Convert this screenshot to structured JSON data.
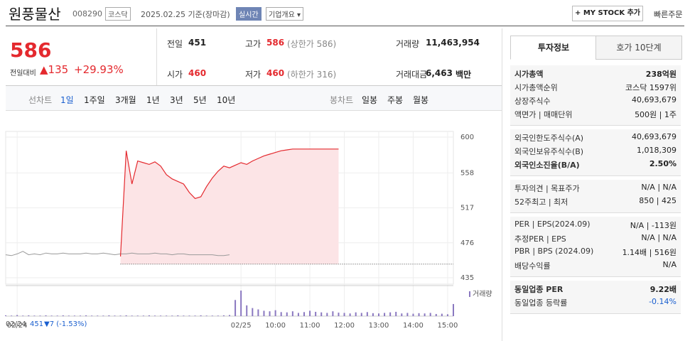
{
  "header": {
    "name": "원풍물산",
    "code": "008290",
    "market": "코스닥",
    "date": "2025.02.25 기준(장마감)",
    "realtime": "실시간",
    "company": "기업개요 ▾",
    "mystock": "+ MY STOCK 추가",
    "quick": "빠른주문"
  },
  "quote": {
    "price": "586",
    "change_label": "전일대비",
    "change": "▲135",
    "rate": "+29.93%",
    "items": [
      {
        "label": "전일",
        "value": "451"
      },
      {
        "label": "고가",
        "value": "586",
        "note": "(상한가 586)"
      },
      {
        "label": "거래량",
        "value": "11,463,954"
      },
      {
        "label": "시가",
        "value": "460"
      },
      {
        "label": "저가",
        "value": "460",
        "note": "(하한가 316)"
      },
      {
        "label": "거래대금",
        "value": "6,463",
        "note": "백만"
      }
    ]
  },
  "tabs": {
    "line_label": "선차트",
    "periods": [
      "1일",
      "1주일",
      "3개월",
      "1년",
      "3년",
      "5년",
      "10년"
    ],
    "candle_label": "봉차트",
    "candles": [
      "일봉",
      "주봉",
      "월봉"
    ]
  },
  "chart": {
    "type": "line",
    "categories": [
      null,
      null,
      "02/24",
      null,
      null,
      null,
      null,
      null,
      null,
      null,
      null,
      null,
      null,
      null,
      null,
      null,
      null,
      null,
      null,
      null,
      null,
      null,
      null,
      null,
      null,
      null,
      null,
      null,
      null,
      null,
      null,
      null,
      null,
      null,
      null,
      null,
      null,
      null,
      null,
      null,
      null,
      "02/25",
      null,
      null,
      null,
      null,
      null,
      "10:00",
      null,
      null,
      null,
      null,
      null,
      "11:00",
      null,
      null,
      null,
      null,
      null,
      "12:00",
      null,
      null,
      null,
      null,
      null,
      "13:00",
      null,
      null,
      null,
      null,
      null,
      "14:00",
      null,
      null,
      null,
      null,
      null,
      "15:00",
      null
    ],
    "series": [
      {
        "color": "#9a9a9a",
        "values": [
          462,
          461,
          463,
          466,
          462,
          463,
          462,
          464,
          463,
          463,
          464,
          463,
          463,
          463,
          464,
          463,
          463,
          464,
          463,
          462,
          463,
          463,
          464,
          463,
          463,
          463,
          464,
          463,
          463,
          462,
          463,
          463,
          462,
          462,
          462,
          462,
          462,
          461,
          461,
          462,
          null,
          null,
          null,
          null,
          null,
          null,
          null,
          null,
          null,
          null,
          null,
          null,
          null,
          null,
          null,
          null,
          null,
          null,
          null,
          null,
          null,
          null,
          null,
          null,
          null,
          null,
          null,
          null,
          null,
          null,
          null,
          null,
          null,
          null,
          null,
          null,
          null,
          null,
          null
        ]
      },
      {
        "color": "#e4292e",
        "fill": "#fce4e6",
        "values": [
          null,
          null,
          null,
          null,
          null,
          null,
          null,
          null,
          null,
          null,
          null,
          null,
          null,
          null,
          null,
          null,
          null,
          null,
          null,
          null,
          460,
          null,
          null,
          null,
          null,
          null,
          null,
          null,
          null,
          null,
          null,
          null,
          null,
          null,
          null,
          null,
          null,
          null,
          null,
          null,
          null,
          null,
          null,
          null,
          null,
          null,
          null,
          null,
          null,
          null,
          null,
          null,
          null,
          null,
          null,
          null,
          null,
          null,
          null,
          null,
          null,
          null,
          null,
          null,
          null,
          null,
          null,
          null,
          null,
          null,
          null,
          null,
          null,
          null,
          null,
          null,
          null,
          null,
          null
        ]
      }
    ],
    "today": [
      460,
      584,
      545,
      572,
      570,
      568,
      571,
      566,
      556,
      551,
      548,
      545,
      535,
      528,
      530,
      542,
      552,
      560,
      566,
      564,
      567,
      570,
      568,
      572,
      575,
      578,
      580,
      582,
      584,
      585,
      586,
      586,
      586,
      586,
      586,
      586,
      586,
      586,
      586
    ],
    "ylim": [
      435,
      600
    ],
    "yticks": [
      600,
      558,
      517,
      476,
      435
    ],
    "prev_close": 451,
    "volume_label": "거래량",
    "volume": [
      3,
      2,
      4,
      2,
      3,
      2,
      2,
      3,
      2,
      2,
      3,
      2,
      2,
      2,
      3,
      2,
      2,
      2,
      3,
      2,
      2,
      3,
      2,
      2,
      2,
      3,
      2,
      2,
      2,
      2,
      3,
      2,
      2,
      2,
      3,
      2,
      2,
      2,
      3,
      4,
      60,
      95,
      40,
      30,
      25,
      20,
      18,
      22,
      15,
      14,
      18,
      12,
      15,
      20,
      16,
      14,
      12,
      18,
      13,
      12,
      10,
      14,
      12,
      15,
      11,
      10,
      12,
      14,
      16,
      10,
      12,
      9,
      11,
      10,
      12,
      8,
      9,
      7,
      45
    ],
    "footer": {
      "date": "02/24",
      "price": "451",
      "change": "▼7 (-1.53%)"
    }
  },
  "side": {
    "tabs": [
      "투자정보",
      "호가 10단계"
    ],
    "sections": [
      [
        {
          "label": "시가총액",
          "value": "238억원",
          "bold": true
        },
        {
          "label": "시가총액순위",
          "value": "코스닥 1597위"
        },
        {
          "label": "상장주식수",
          "value": "40,693,679"
        },
        {
          "label": "액면가 | 매매단위",
          "value": "500원 | 1주"
        }
      ],
      [
        {
          "label": "외국인한도주식수(A)",
          "value": "40,693,679"
        },
        {
          "label": "외국인보유주식수(B)",
          "value": "1,018,309"
        },
        {
          "label": "외국인소진율(B/A)",
          "value": "2.50%",
          "bold": true
        }
      ],
      [
        {
          "label": "투자의견 | 목표주가",
          "value": "N/A | N/A"
        },
        {
          "label": "52주최고 | 최저",
          "value": "850 | 425"
        }
      ],
      [
        {
          "label": "PER | EPS(2024.09)",
          "value": "N/A | -113원"
        },
        {
          "label": "추정PER | EPS",
          "value": "N/A | N/A"
        },
        {
          "label": "PBR | BPS (2024.09)",
          "value": "1.14배 | 516원"
        },
        {
          "label": "배당수익률",
          "value": "N/A"
        }
      ],
      [
        {
          "label": "동일업종 PER",
          "value": "9.22배",
          "bold": true
        },
        {
          "label": "동일업종 등락률",
          "value": "-0.14%",
          "color": "#1a5fcf"
        }
      ]
    ]
  }
}
